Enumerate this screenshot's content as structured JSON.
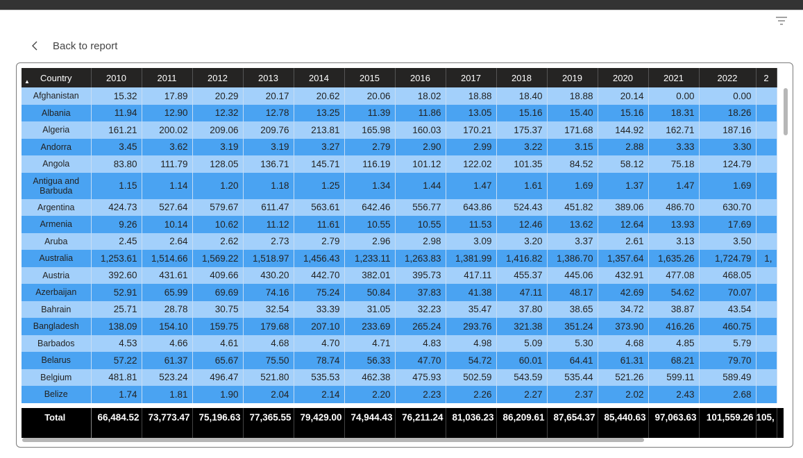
{
  "back_label": "Back to report",
  "table": {
    "country_header": "Country",
    "years": [
      "2010",
      "2011",
      "2012",
      "2013",
      "2014",
      "2015",
      "2016",
      "2017",
      "2018",
      "2019",
      "2020",
      "2021",
      "2022",
      "2"
    ],
    "rows": [
      {
        "country": "Afghanistan",
        "values": [
          "15.32",
          "17.89",
          "20.29",
          "20.17",
          "20.62",
          "20.06",
          "18.02",
          "18.88",
          "18.40",
          "18.88",
          "20.14",
          "0.00",
          "0.00",
          ""
        ]
      },
      {
        "country": "Albania",
        "values": [
          "11.94",
          "12.90",
          "12.32",
          "12.78",
          "13.25",
          "11.39",
          "11.86",
          "13.05",
          "15.16",
          "15.40",
          "15.16",
          "18.31",
          "18.26",
          ""
        ]
      },
      {
        "country": "Algeria",
        "values": [
          "161.21",
          "200.02",
          "209.06",
          "209.76",
          "213.81",
          "165.98",
          "160.03",
          "170.21",
          "175.37",
          "171.68",
          "144.92",
          "162.71",
          "187.16",
          ""
        ]
      },
      {
        "country": "Andorra",
        "values": [
          "3.45",
          "3.62",
          "3.19",
          "3.19",
          "3.27",
          "2.79",
          "2.90",
          "2.99",
          "3.22",
          "3.15",
          "2.88",
          "3.33",
          "3.30",
          ""
        ]
      },
      {
        "country": "Angola",
        "values": [
          "83.80",
          "111.79",
          "128.05",
          "136.71",
          "145.71",
          "116.19",
          "101.12",
          "122.02",
          "101.35",
          "84.52",
          "58.12",
          "75.18",
          "124.79",
          ""
        ]
      },
      {
        "country": "Antigua and Barbuda",
        "values": [
          "1.15",
          "1.14",
          "1.20",
          "1.18",
          "1.25",
          "1.34",
          "1.44",
          "1.47",
          "1.61",
          "1.69",
          "1.37",
          "1.47",
          "1.69",
          ""
        ]
      },
      {
        "country": "Argentina",
        "values": [
          "424.73",
          "527.64",
          "579.67",
          "611.47",
          "563.61",
          "642.46",
          "556.77",
          "643.86",
          "524.43",
          "451.82",
          "389.06",
          "486.70",
          "630.70",
          ""
        ]
      },
      {
        "country": "Armenia",
        "values": [
          "9.26",
          "10.14",
          "10.62",
          "11.12",
          "11.61",
          "10.55",
          "10.55",
          "11.53",
          "12.46",
          "13.62",
          "12.64",
          "13.93",
          "17.69",
          ""
        ]
      },
      {
        "country": "Aruba",
        "values": [
          "2.45",
          "2.64",
          "2.62",
          "2.73",
          "2.79",
          "2.96",
          "2.98",
          "3.09",
          "3.20",
          "3.37",
          "2.61",
          "3.13",
          "3.50",
          ""
        ]
      },
      {
        "country": "Australia",
        "values": [
          "1,253.61",
          "1,514.66",
          "1,569.22",
          "1,518.97",
          "1,456.43",
          "1,233.11",
          "1,263.83",
          "1,381.99",
          "1,416.82",
          "1,386.70",
          "1,357.64",
          "1,635.26",
          "1,724.79",
          "1,"
        ]
      },
      {
        "country": "Austria",
        "values": [
          "392.60",
          "431.61",
          "409.66",
          "430.20",
          "442.70",
          "382.01",
          "395.73",
          "417.11",
          "455.37",
          "445.06",
          "432.91",
          "477.08",
          "468.05",
          ""
        ]
      },
      {
        "country": "Azerbaijan",
        "values": [
          "52.91",
          "65.99",
          "69.69",
          "74.16",
          "75.24",
          "50.84",
          "37.83",
          "41.38",
          "47.11",
          "48.17",
          "42.69",
          "54.62",
          "70.07",
          ""
        ]
      },
      {
        "country": "Bahrain",
        "values": [
          "25.71",
          "28.78",
          "30.75",
          "32.54",
          "33.39",
          "31.05",
          "32.23",
          "35.47",
          "37.80",
          "38.65",
          "34.72",
          "38.87",
          "43.54",
          ""
        ]
      },
      {
        "country": "Bangladesh",
        "values": [
          "138.09",
          "154.10",
          "159.75",
          "179.68",
          "207.10",
          "233.69",
          "265.24",
          "293.76",
          "321.38",
          "351.24",
          "373.90",
          "416.26",
          "460.75",
          ""
        ]
      },
      {
        "country": "Barbados",
        "values": [
          "4.53",
          "4.66",
          "4.61",
          "4.68",
          "4.70",
          "4.71",
          "4.83",
          "4.98",
          "5.09",
          "5.30",
          "4.68",
          "4.85",
          "5.79",
          ""
        ]
      },
      {
        "country": "Belarus",
        "values": [
          "57.22",
          "61.37",
          "65.67",
          "75.50",
          "78.74",
          "56.33",
          "47.70",
          "54.72",
          "60.01",
          "64.41",
          "61.31",
          "68.21",
          "79.70",
          ""
        ]
      },
      {
        "country": "Belgium",
        "values": [
          "481.81",
          "523.24",
          "496.47",
          "521.80",
          "535.53",
          "462.38",
          "475.93",
          "502.59",
          "543.59",
          "535.44",
          "521.26",
          "599.11",
          "589.49",
          ""
        ]
      },
      {
        "country": "Belize",
        "values": [
          "1.74",
          "1.81",
          "1.90",
          "2.04",
          "2.14",
          "2.20",
          "2.23",
          "2.26",
          "2.27",
          "2.37",
          "2.02",
          "2.43",
          "2.68",
          ""
        ]
      }
    ],
    "total": {
      "label": "Total",
      "values": [
        "66,484.52",
        "73,773.47",
        "75,196.63",
        "77,365.55",
        "79,429.00",
        "74,944.43",
        "76,211.24",
        "81,036.23",
        "86,209.61",
        "87,654.37",
        "85,440.63",
        "97,063.63",
        "101,559.26",
        "105,"
      ]
    }
  },
  "icons": {
    "filter": "filter-lines-icon",
    "back": "chevron-left-icon",
    "sort": "sort-ascending-icon"
  },
  "colors": {
    "row_light": "#a3d0fb",
    "row_dark": "#4aa3f2",
    "header": "#252423",
    "total": "#000000"
  }
}
